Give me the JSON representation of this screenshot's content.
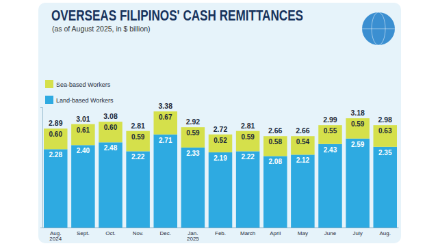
{
  "chart_data": {
    "type": "bar",
    "title": "OVERSEAS FILIPINOS' CASH REMITTANCES",
    "subtitle": "(as of August 2025, in $ billion)",
    "categories": [
      "Aug. 2024",
      "Sept.",
      "Oct.",
      "Nov.",
      "Dec.",
      "Jan. 2025",
      "Feb.",
      "March",
      "April",
      "May",
      "June",
      "July",
      "Aug."
    ],
    "series": [
      {
        "name": "Land-based Workers",
        "color": "#2eaae1",
        "values": [
          2.28,
          2.4,
          2.48,
          2.22,
          2.71,
          2.33,
          2.19,
          2.22,
          2.08,
          2.12,
          2.43,
          2.59,
          2.35
        ],
        "value_labels": [
          "2.28",
          "2.40",
          "2.48",
          "2.22",
          "2.71",
          "2.33",
          "2.19",
          "2.22",
          "2.08",
          "2.12",
          "2.43",
          "2.59",
          "2.35"
        ]
      },
      {
        "name": "Sea-based Workers",
        "color": "#d5e04b",
        "values": [
          0.6,
          0.61,
          0.6,
          0.59,
          0.67,
          0.59,
          0.52,
          0.59,
          0.58,
          0.54,
          0.55,
          0.59,
          0.63
        ],
        "value_labels": [
          "0.60",
          "0.61",
          "0.60",
          "0.59",
          "0.67",
          "0.59",
          "0.52",
          "0.59",
          "0.58",
          "0.54",
          "0.55",
          "0.59",
          "0.63"
        ]
      }
    ],
    "totals": [
      2.89,
      3.01,
      3.08,
      2.81,
      3.38,
      2.92,
      2.72,
      2.81,
      2.66,
      2.66,
      2.99,
      3.18,
      2.98
    ],
    "stacked": true,
    "data_labels": true,
    "legend": "upper left",
    "tick_labels": "x",
    "grid": false,
    "ylim": [
      0,
      3.5
    ],
    "yticks": [
      0
    ]
  }
}
